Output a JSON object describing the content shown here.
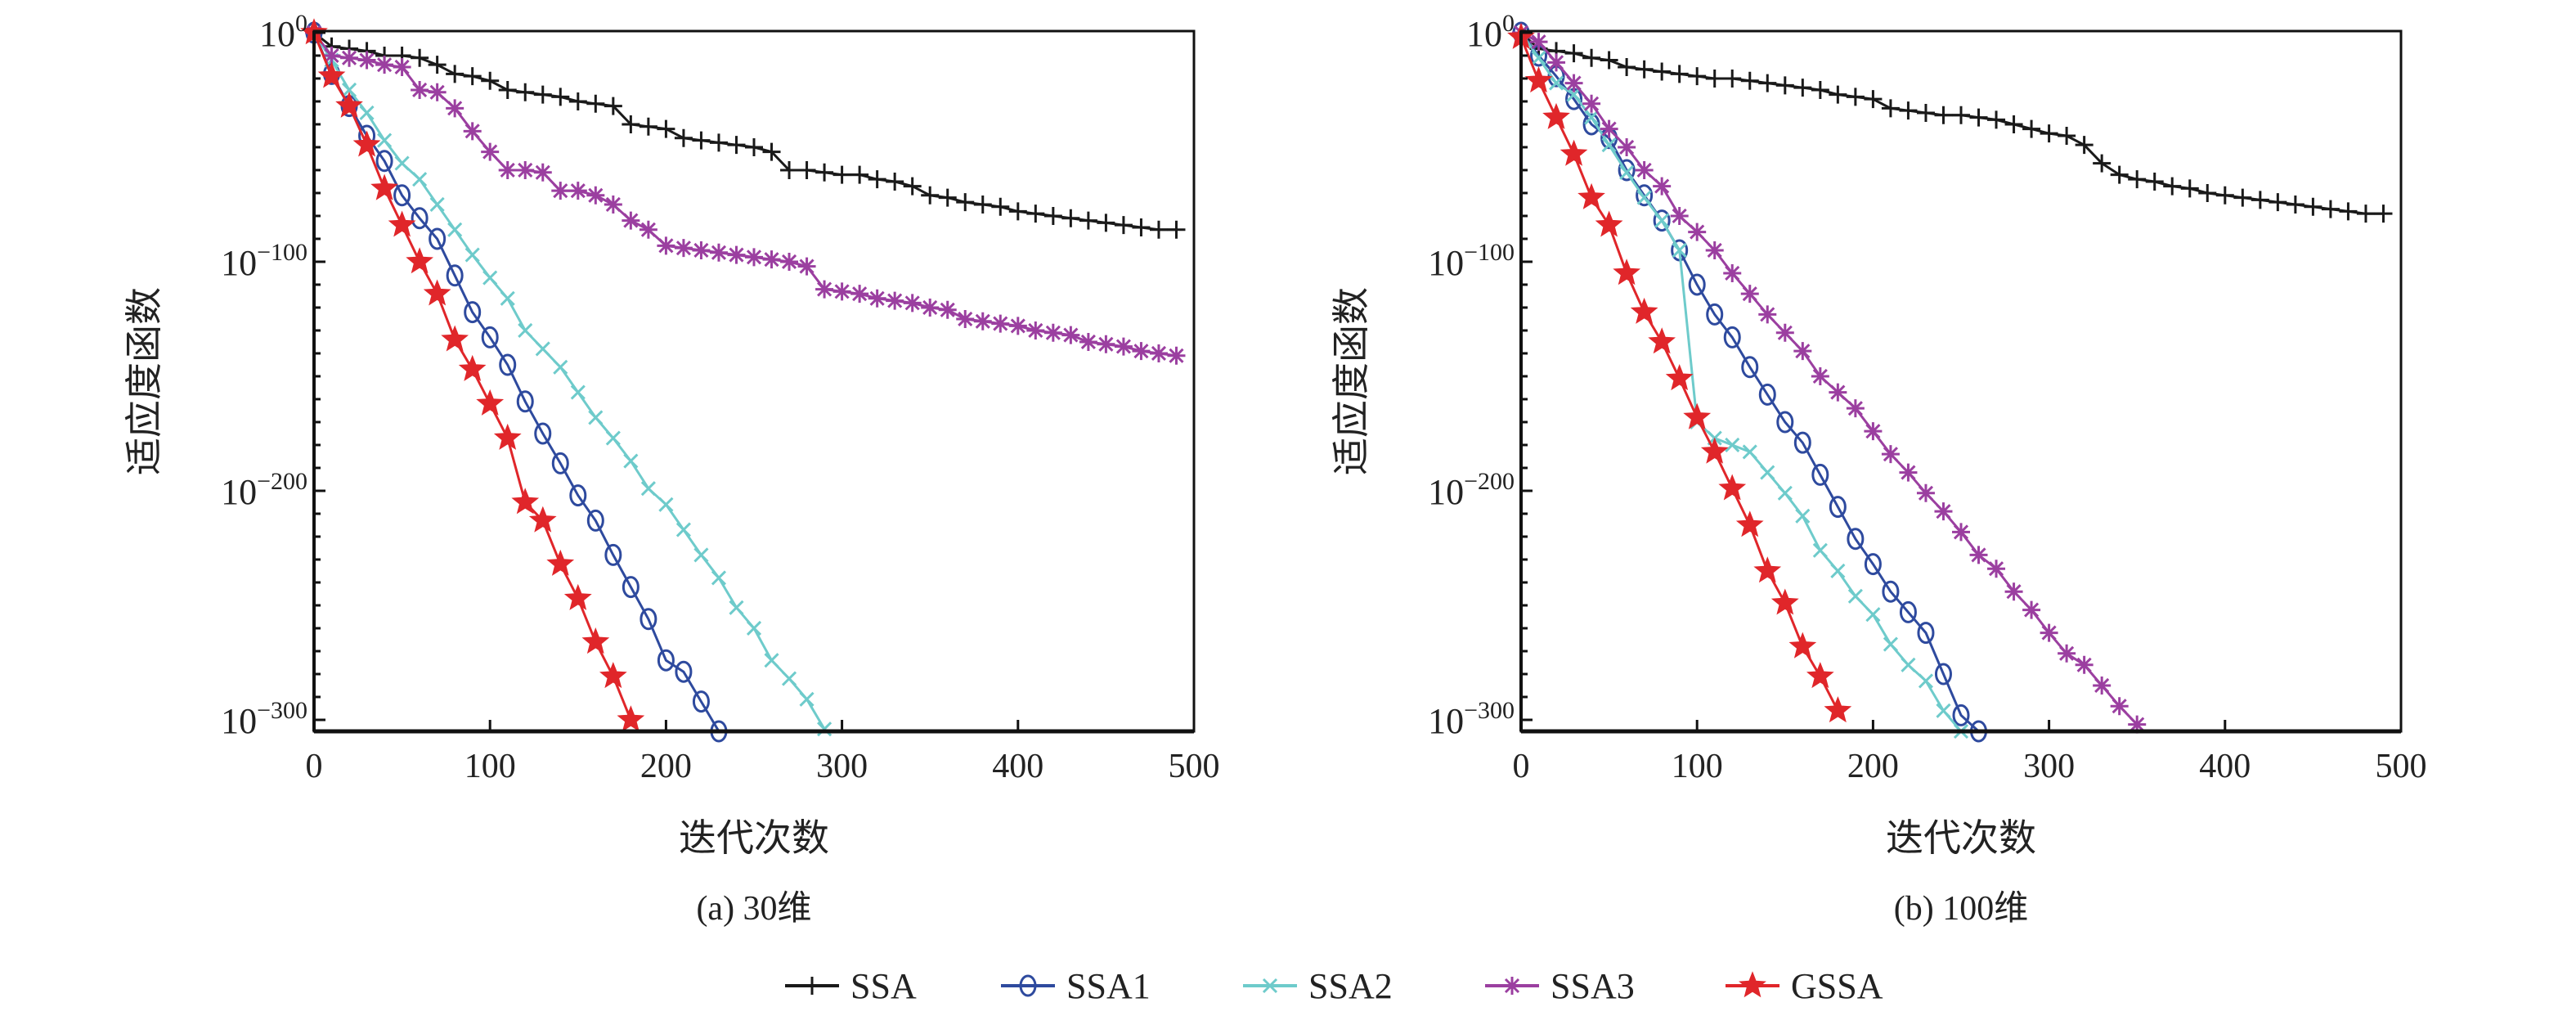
{
  "legend": [
    {
      "name": "SSA",
      "color": "#1a1a1a",
      "marker": "plus"
    },
    {
      "name": "SSA1",
      "color": "#2e4a9e",
      "marker": "circle"
    },
    {
      "name": "SSA2",
      "color": "#6ecbcb",
      "marker": "x"
    },
    {
      "name": "SSA3",
      "color": "#9b3fa0",
      "marker": "asterisk"
    },
    {
      "name": "GSSA",
      "color": "#e0262a",
      "marker": "star"
    }
  ],
  "chart_data": [
    {
      "type": "line",
      "caption": "(a) 30维",
      "xlabel": "迭代次数",
      "ylabel": "适应度函数",
      "yscale": "log",
      "xlim": [
        0,
        500
      ],
      "ylim_log10": [
        -305,
        0.7
      ],
      "xticks": [
        0,
        100,
        200,
        300,
        400,
        500
      ],
      "yticks_log10": [
        0,
        -100,
        -200,
        -300
      ],
      "x_step": 10,
      "series": [
        {
          "name": "SSA",
          "y_log10": [
            0,
            -6,
            -7,
            -8,
            -10,
            -10,
            -11,
            -14,
            -18,
            -19,
            -21,
            -25,
            -26,
            -27,
            -28,
            -30,
            -31,
            -32,
            -40,
            -41,
            -42,
            -46,
            -47,
            -48,
            -49,
            -50,
            -52,
            -60,
            -60,
            -61,
            -62,
            -62,
            -64,
            -65,
            -67,
            -71,
            -72,
            -74,
            -75,
            -76,
            -78,
            -79,
            -80,
            -81,
            -82,
            -83,
            -84,
            -85,
            -86,
            -86
          ]
        },
        {
          "name": "SSA1",
          "y_log10": [
            0,
            -18,
            -32,
            -45,
            -56,
            -71,
            -81,
            -90,
            -106,
            -122,
            -133,
            -145,
            -161,
            -175,
            -188,
            -202,
            -213,
            -228,
            -242,
            -256,
            -274,
            -279,
            -292,
            -305
          ]
        },
        {
          "name": "SSA2",
          "y_log10": [
            0,
            -12,
            -25,
            -35,
            -47,
            -57,
            -64,
            -75,
            -86,
            -97,
            -107,
            -116,
            -130,
            -138,
            -146,
            -157,
            -168,
            -177,
            -187,
            -199,
            -206,
            -217,
            -228,
            -238,
            -251,
            -260,
            -274,
            -282,
            -291,
            -304
          ]
        },
        {
          "name": "SSA3",
          "y_log10": [
            0,
            -10,
            -11,
            -12,
            -14,
            -15,
            -25,
            -26,
            -33,
            -43,
            -52,
            -60,
            -60,
            -61,
            -69,
            -69,
            -71,
            -75,
            -82,
            -86,
            -93,
            -94,
            -95,
            -96,
            -97,
            -98,
            -99,
            -100,
            -102,
            -112,
            -113,
            -114,
            -116,
            -117,
            -118,
            -120,
            -121,
            -125,
            -126,
            -127,
            -128,
            -130,
            -131,
            -132,
            -135,
            -136,
            -137,
            -139,
            -140,
            -141
          ]
        },
        {
          "name": "GSSA",
          "y_log10": [
            0,
            -19,
            -32,
            -49,
            -68,
            -84,
            -100,
            -114,
            -134,
            -147,
            -162,
            -177,
            -205,
            -213,
            -232,
            -247,
            -266,
            -281,
            -300
          ]
        }
      ]
    },
    {
      "type": "line",
      "caption": "(b) 100维",
      "xlabel": "迭代次数",
      "ylabel": "适应度函数",
      "yscale": "log",
      "xlim": [
        0,
        500
      ],
      "ylim_log10": [
        -305,
        0.7
      ],
      "xticks": [
        0,
        100,
        200,
        300,
        400,
        500
      ],
      "yticks_log10": [
        0,
        -100,
        -200,
        -300
      ],
      "x_step": 10,
      "series": [
        {
          "name": "SSA",
          "y_log10": [
            0,
            -7,
            -8,
            -9,
            -11,
            -12,
            -15,
            -16,
            -17,
            -18,
            -19,
            -20,
            -20,
            -21,
            -22,
            -23,
            -24,
            -25,
            -27,
            -28,
            -29,
            -33,
            -34,
            -35,
            -36,
            -36,
            -37,
            -38,
            -40,
            -42,
            -44,
            -45,
            -49,
            -57,
            -62,
            -64,
            -65,
            -67,
            -68,
            -70,
            -71,
            -72,
            -73,
            -74,
            -75,
            -76,
            -77,
            -78,
            -79,
            -79
          ]
        },
        {
          "name": "SSA1",
          "y_log10": [
            0,
            -10,
            -19,
            -29,
            -40,
            -46,
            -60,
            -71,
            -82,
            -95,
            -110,
            -123,
            -133,
            -146,
            -158,
            -170,
            -179,
            -193,
            -207,
            -221,
            -232,
            -244,
            -253,
            -262,
            -280,
            -298,
            -305
          ]
        },
        {
          "name": "SSA2",
          "y_log10": [
            0,
            -11,
            -22,
            -27,
            -37,
            -49,
            -61,
            -72,
            -82,
            -95,
            -170,
            -177,
            -180,
            -183,
            -192,
            -201,
            -211,
            -226,
            -235,
            -246,
            -254,
            -267,
            -276,
            -283,
            -296,
            -305
          ]
        },
        {
          "name": "SSA3",
          "y_log10": [
            0,
            -4,
            -13,
            -22,
            -31,
            -42,
            -50,
            -60,
            -67,
            -80,
            -87,
            -95,
            -105,
            -114,
            -123,
            -131,
            -139,
            -150,
            -157,
            -164,
            -174,
            -184,
            -192,
            -201,
            -209,
            -218,
            -228,
            -234,
            -244,
            -252,
            -262,
            -271,
            -276,
            -285,
            -294,
            -302
          ]
        },
        {
          "name": "GSSA",
          "y_log10": [
            -2,
            -21,
            -37,
            -53,
            -72,
            -84,
            -105,
            -122,
            -135,
            -151,
            -168,
            -183,
            -199,
            -215,
            -235,
            -249,
            -268,
            -281,
            -296
          ]
        }
      ]
    }
  ]
}
